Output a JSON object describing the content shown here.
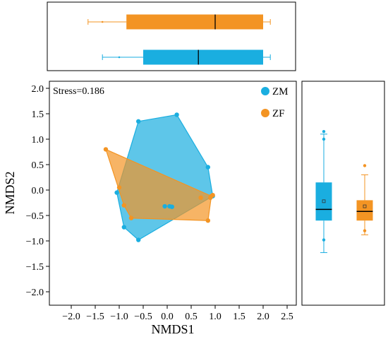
{
  "colors": {
    "ZM": "#1aaee0",
    "ZF": "#f39423"
  },
  "chart_data": [
    {
      "type": "scatter",
      "role": "nmds-ordination",
      "xlabel": "NMDS1",
      "ylabel": "NMDS2",
      "xlim": [
        -2.5,
        2.7
      ],
      "ylim": [
        -2.2,
        2.1
      ],
      "xticks": [
        "−2.0",
        "−1.5",
        "−1.0",
        "−0.5",
        "0.0",
        "0.5",
        "1.0",
        "1.5",
        "2.0",
        "2.5"
      ],
      "xtick_values": [
        -2.0,
        -1.5,
        -1.0,
        -0.5,
        0.0,
        0.5,
        1.0,
        1.5,
        2.0,
        2.5
      ],
      "yticks": [
        "2.0",
        "1.5",
        "1.0",
        "0.5",
        "0.0",
        "−0.5",
        "−1.0",
        "−1.5",
        "−2.0"
      ],
      "ytick_values": [
        2.0,
        1.5,
        1.0,
        0.5,
        0.0,
        -0.5,
        -1.0,
        -1.5,
        -2.0
      ],
      "annotation": "Stress=0.186",
      "legend_position": "top-right",
      "series": [
        {
          "name": "ZM",
          "color": "#1aaee0",
          "points": [
            [
              -0.6,
              1.35
            ],
            [
              0.2,
              1.48
            ],
            [
              0.85,
              0.45
            ],
            [
              0.95,
              -0.12
            ],
            [
              -0.6,
              -0.98
            ],
            [
              -0.9,
              -0.73
            ],
            [
              -1.05,
              -0.05
            ],
            [
              -0.05,
              -0.32
            ],
            [
              0.05,
              -0.32
            ],
            [
              0.1,
              -0.33
            ]
          ],
          "hull": [
            [
              -0.6,
              1.35
            ],
            [
              0.2,
              1.48
            ],
            [
              0.85,
              0.45
            ],
            [
              0.95,
              -0.12
            ],
            [
              -0.6,
              -0.98
            ],
            [
              -0.9,
              -0.73
            ],
            [
              -1.05,
              -0.05
            ]
          ]
        },
        {
          "name": "ZF",
          "color": "#f39423",
          "points": [
            [
              -1.28,
              0.8
            ],
            [
              0.92,
              -0.12
            ],
            [
              0.85,
              -0.6
            ],
            [
              -0.75,
              -0.55
            ],
            [
              -0.9,
              -0.3
            ],
            [
              -1.0,
              0.05
            ],
            [
              0.9,
              -0.15
            ],
            [
              0.7,
              -0.15
            ],
            [
              0.95,
              -0.1
            ]
          ],
          "hull": [
            [
              -1.28,
              0.8
            ],
            [
              0.92,
              -0.12
            ],
            [
              0.85,
              -0.6
            ],
            [
              -0.75,
              -0.55
            ],
            [
              -0.9,
              -0.3
            ]
          ]
        }
      ]
    },
    {
      "type": "boxplot",
      "orientation": "horizontal",
      "axis": "NMDS1",
      "series": [
        {
          "name": "ZF",
          "color": "#f39423",
          "min": -1.65,
          "q1": -0.85,
          "median": 1.0,
          "q3": 2.0,
          "max": 2.15,
          "outliers": [
            -1.35
          ]
        },
        {
          "name": "ZM",
          "color": "#1aaee0",
          "min": -1.35,
          "q1": -0.5,
          "median": 0.65,
          "q3": 2.0,
          "max": 2.15,
          "outliers": [
            -1.0
          ]
        }
      ]
    },
    {
      "type": "boxplot",
      "orientation": "vertical",
      "axis": "NMDS2",
      "series": [
        {
          "name": "ZM",
          "color": "#1aaee0",
          "min": -1.23,
          "q1": -0.6,
          "median": -0.38,
          "q3": 0.15,
          "max": 1.1,
          "mean": -0.22,
          "outliers": [
            1.15,
            1.0,
            -0.98
          ]
        },
        {
          "name": "ZF",
          "color": "#f39423",
          "min": -0.88,
          "q1": -0.6,
          "median": -0.42,
          "q3": -0.2,
          "max": 0.3,
          "mean": -0.32,
          "outliers": [
            0.48,
            -0.8
          ]
        }
      ]
    }
  ]
}
